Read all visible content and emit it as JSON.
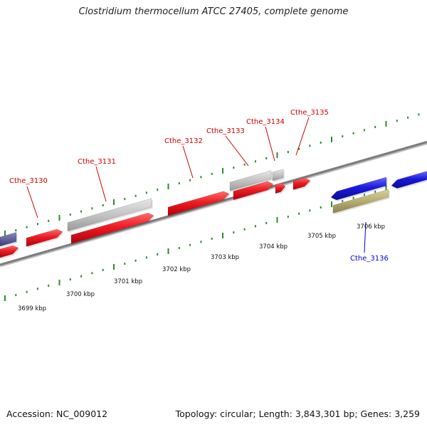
{
  "title": "Clostridium thermocellum ATCC 27405, complete genome",
  "accession": "Accession: NC_009012",
  "topology": "Topology: circular; Length: 3,843,301 bp; Genes: 3,259",
  "colors": {
    "forward_gene": "#e8141a",
    "reverse_gene": "#1a1ad8",
    "reverse_gene_dark": "#4a4a8c",
    "rna_feature": "#c0c0c0",
    "other_feature": "#b5ad70",
    "tick": "#2e8a2e",
    "backbone": "#8a8a8a",
    "forward_label": "#cc0000",
    "reverse_label": "#0000cc"
  },
  "kbp_labels": [
    "3699 kbp",
    "3700 kbp",
    "3701 kbp",
    "3702 kbp",
    "3703 kbp",
    "3704 kbp",
    "3705 kbp",
    "3706 kbp"
  ],
  "gene_labels": [
    {
      "name": "Cthe_3130",
      "strand": "forward"
    },
    {
      "name": "Cthe_3131",
      "strand": "forward"
    },
    {
      "name": "Cthe_3132",
      "strand": "forward"
    },
    {
      "name": "Cthe_3133",
      "strand": "forward"
    },
    {
      "name": "Cthe_3134",
      "strand": "forward"
    },
    {
      "name": "Cthe_3135",
      "strand": "forward"
    },
    {
      "name": "Cthe_3136",
      "strand": "reverse"
    }
  ]
}
